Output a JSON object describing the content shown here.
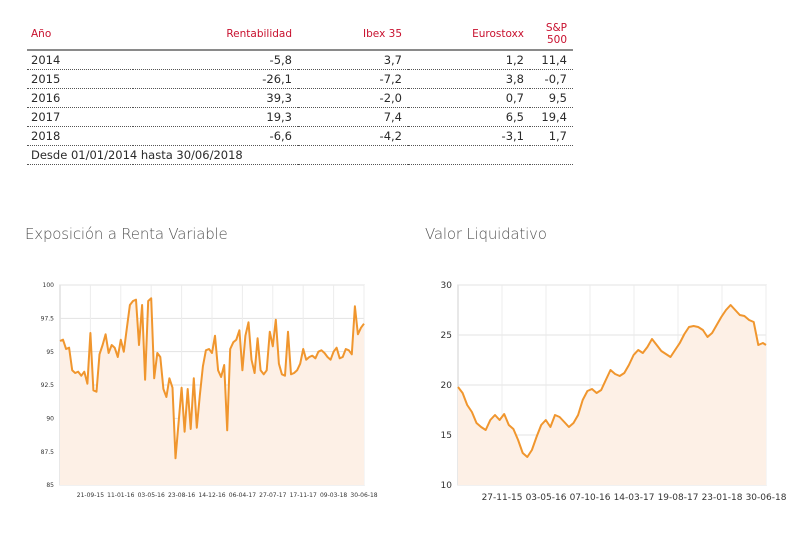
{
  "table": {
    "headers": [
      "Año",
      "Rentabilidad",
      "Ibex 35",
      "Eurostoxx",
      "S&P 500"
    ],
    "rows": [
      [
        "2014",
        "-5,8",
        "3,7",
        "1,2",
        "11,4"
      ],
      [
        "2015",
        "-26,1",
        "-7,2",
        "3,8",
        "-0,7"
      ],
      [
        "2016",
        "39,3",
        "-2,0",
        "0,7",
        "9,5"
      ],
      [
        "2017",
        "19,3",
        "7,4",
        "6,5",
        "19,4"
      ],
      [
        "2018",
        "-6,6",
        "-4,2",
        "-3,1",
        "1,7"
      ]
    ],
    "note": "Desde 01/01/2014 hasta 30/06/2018"
  },
  "chart_titles": {
    "left": "Exposición a Renta Variable",
    "right": "Valor Liquidativo"
  },
  "colors": {
    "line": "#f0962e",
    "fill": "#fdf0e6",
    "header_text": "#c8102e"
  },
  "chart_data": [
    {
      "type": "area",
      "title": "Exposición a Renta Variable",
      "x_ticks": [
        "21-09-15",
        "11-01-16",
        "03-05-16",
        "23-08-16",
        "14-12-16",
        "06-04-17",
        "27-07-17",
        "17-11-17",
        "09-03-18",
        "30-06-18"
      ],
      "y_ticks": [
        85,
        87.5,
        90,
        92.5,
        95,
        97.5,
        100
      ],
      "y_tick_labels": [
        "85",
        "87.5",
        "90",
        "92.5",
        "95",
        "97.5",
        "100"
      ],
      "ylim": [
        85,
        100
      ],
      "x_range": [
        0,
        100
      ],
      "x": [
        0,
        1,
        2,
        3,
        4,
        5,
        6,
        7,
        8,
        9,
        10,
        11,
        12,
        13,
        14,
        15,
        16,
        17,
        18,
        19,
        20,
        21,
        22,
        23,
        24,
        25,
        26,
        27,
        28,
        29,
        30,
        31,
        32,
        33,
        34,
        35,
        36,
        37,
        38,
        39,
        40,
        41,
        42,
        43,
        44,
        45,
        46,
        47,
        48,
        49,
        50,
        51,
        52,
        53,
        54,
        55,
        56,
        57,
        58,
        59,
        60,
        61,
        62,
        63,
        64,
        65,
        66,
        67,
        68,
        69,
        70,
        71,
        72,
        73,
        74,
        75,
        76,
        77,
        78,
        79,
        80,
        81,
        82,
        83,
        84,
        85,
        86,
        87,
        88,
        89,
        90,
        91,
        92,
        93,
        94,
        95,
        96,
        97,
        98,
        99,
        100
      ],
      "values": [
        95.8,
        95.9,
        95.2,
        95.3,
        93.6,
        93.4,
        93.5,
        93.2,
        93.5,
        92.6,
        96.4,
        92.1,
        92,
        94.8,
        95.5,
        96.3,
        94.9,
        95.5,
        95.3,
        94.6,
        95.9,
        95,
        96.8,
        98.5,
        98.8,
        98.9,
        95.5,
        98.5,
        92.9,
        98.8,
        99,
        93,
        94.9,
        94.6,
        92.2,
        91.6,
        93,
        92.3,
        87,
        89.7,
        92.3,
        89,
        92.2,
        89.2,
        93,
        89.3,
        91.7,
        93.9,
        95.1,
        95.2,
        94.9,
        96.2,
        93.6,
        93.1,
        94,
        89.1,
        95.2,
        95.7,
        95.9,
        96.6,
        93.6,
        96.2,
        97.2,
        94.4,
        93.4,
        96,
        93.6,
        93.3,
        93.6,
        96.5,
        95.4,
        97.4,
        94.1,
        93.3,
        93.2,
        96.5,
        93.3,
        93.4,
        93.6,
        94.1,
        95.2,
        94.4,
        94.6,
        94.7,
        94.5,
        95,
        95.1,
        94.9,
        94.6,
        94.4,
        95,
        95.3,
        94.5,
        94.6,
        95.2,
        95.1,
        94.8,
        98.4,
        96.3,
        96.8,
        97.1
      ]
    },
    {
      "type": "area",
      "title": "Valor Liquidativo",
      "x_ticks": [
        "27-11-15",
        "03-05-16",
        "07-10-16",
        "14-03-17",
        "19-08-17",
        "23-01-18",
        "30-06-18"
      ],
      "y_ticks": [
        10,
        15,
        20,
        25,
        30
      ],
      "y_tick_labels": [
        "10",
        "15",
        "20",
        "25",
        "30"
      ],
      "ylim": [
        10,
        30
      ],
      "x_range": [
        0,
        100
      ],
      "x": [
        0,
        1.5,
        3,
        4.5,
        6,
        7.5,
        9,
        10.5,
        12,
        13.5,
        15,
        16.5,
        18,
        19.5,
        21,
        22.5,
        24,
        25.5,
        27,
        28.5,
        30,
        31.5,
        33,
        34.5,
        36,
        37.5,
        39,
        40.5,
        42,
        43.5,
        45,
        46.5,
        48,
        49.5,
        51,
        52.5,
        54,
        55.5,
        57,
        58.5,
        60,
        61.5,
        63,
        64.5,
        66,
        67.5,
        69,
        70.5,
        72,
        73.5,
        75,
        76.5,
        78,
        79.5,
        81,
        82.5,
        84,
        85.5,
        87,
        88.5,
        90,
        91.5,
        93,
        94.5,
        96,
        97.5,
        99,
        100
      ],
      "values": [
        19.8,
        19.2,
        18,
        17.3,
        16.2,
        15.8,
        15.5,
        16.5,
        17,
        16.5,
        17.1,
        16,
        15.6,
        14.5,
        13.2,
        12.8,
        13.5,
        14.8,
        16,
        16.5,
        15.8,
        17,
        16.8,
        16.3,
        15.8,
        16.2,
        17,
        18.5,
        19.4,
        19.6,
        19.2,
        19.5,
        20.5,
        21.5,
        21.1,
        20.9,
        21.2,
        22,
        23,
        23.5,
        23.2,
        23.8,
        24.6,
        24,
        23.4,
        23.1,
        22.8,
        23.5,
        24.2,
        25.1,
        25.8,
        25.9,
        25.8,
        25.5,
        24.8,
        25.2,
        26,
        26.8,
        27.5,
        28,
        27.5,
        27,
        26.9,
        26.5,
        26.3,
        24,
        24.2,
        24
      ]
    }
  ]
}
